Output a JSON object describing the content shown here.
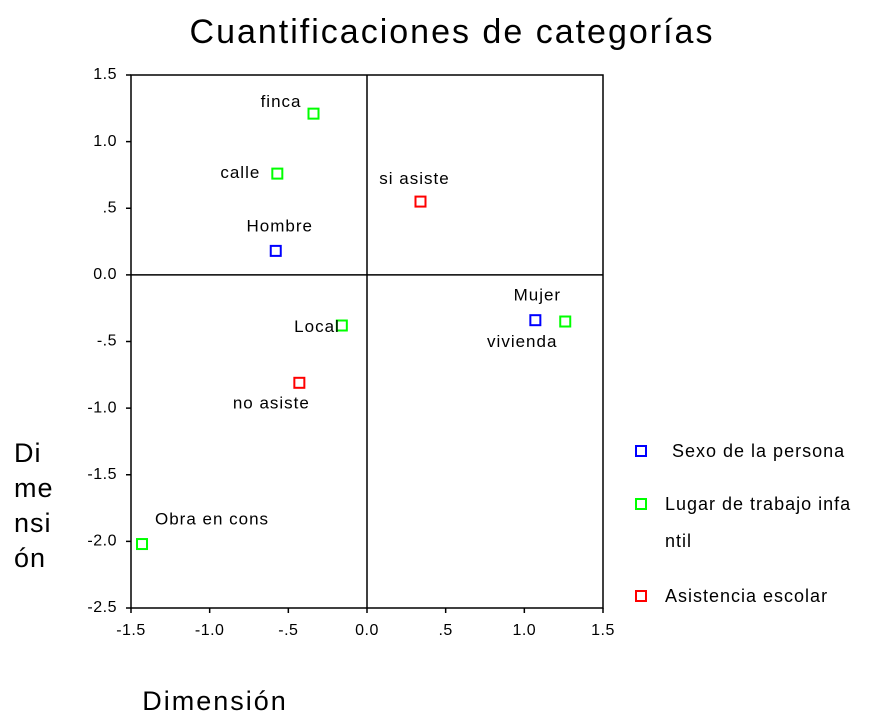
{
  "chart_data": {
    "type": "scatter",
    "title": "Cuantificaciones de categorías",
    "xlabel": "Dimensión",
    "ylabel": "Dimensión",
    "xlim": [
      -1.5,
      1.5
    ],
    "ylim": [
      -2.5,
      1.5
    ],
    "xticks": [
      -1.5,
      {
        "value": -1,
        "label": "-1.0"
      },
      {
        "value": -0.5,
        "label": "-.5"
      },
      {
        "value": 0,
        "label": "0.0"
      },
      {
        "value": 0.5,
        "label": ".5"
      },
      {
        "value": 1,
        "label": "1.0"
      },
      1.5
    ],
    "yticks": [
      1.5,
      {
        "value": 1,
        "label": "1.0"
      },
      {
        "value": 0.5,
        "label": ".5"
      },
      {
        "value": 0,
        "label": "0.0"
      },
      {
        "value": -0.5,
        "label": "-.5"
      },
      {
        "value": -1,
        "label": "-1.0"
      },
      -1.5,
      {
        "value": -2,
        "label": "-2.0"
      },
      -2.5
    ],
    "series": [
      {
        "name": "Sexo de la persona",
        "color": "#0000ff",
        "labels": [
          "Hombre",
          "Mujer"
        ],
        "x": [
          -0.58,
          1.07
        ],
        "y": [
          0.18,
          -0.34
        ]
      },
      {
        "name": "Lugar de trabajo infantil",
        "color": "#00ff00",
        "labels": [
          "finca",
          "calle",
          "Local",
          "vivienda",
          "Obra en cons"
        ],
        "x": [
          -0.34,
          -0.57,
          -0.16,
          1.26,
          -1.43
        ],
        "y": [
          1.21,
          0.76,
          -0.38,
          -0.35,
          -2.02
        ]
      },
      {
        "name": "Asistencia escolar",
        "color": "#ff0000",
        "labels": [
          "si asiste",
          "no asiste"
        ],
        "x": [
          0.34,
          -0.43
        ],
        "y": [
          0.55,
          -0.81
        ]
      }
    ]
  }
}
